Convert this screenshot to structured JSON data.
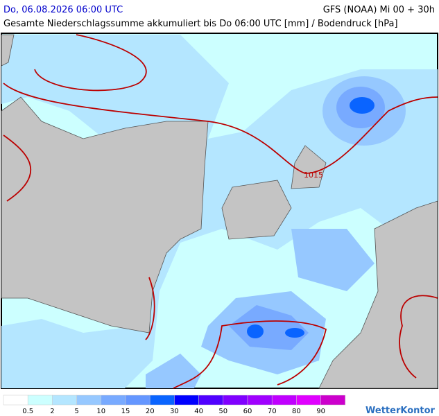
{
  "header": {
    "datetime": "Do, 06.08.2026 06:00 UTC",
    "model": "GFS (NOAA) Mi 00 + 30h",
    "subtitle": "Gesamte Niederschlagssumme akkumuliert bis Do 06:00 UTC [mm] / Bodendruck [hPa]"
  },
  "map": {
    "isobar_label": "1015"
  },
  "legend": {
    "colors": [
      "#ffffff",
      "#ccffff",
      "#b4e6ff",
      "#96c8ff",
      "#78aaff",
      "#6496ff",
      "#0a64ff",
      "#0000ff",
      "#5000ff",
      "#8000ff",
      "#a000ff",
      "#c000ff",
      "#e000ff",
      "#cc00cc"
    ],
    "labels": [
      "0.5",
      "2",
      "5",
      "10",
      "15",
      "20",
      "30",
      "40",
      "50",
      "60",
      "70",
      "80",
      "90"
    ]
  },
  "logo": "WetterKontor"
}
